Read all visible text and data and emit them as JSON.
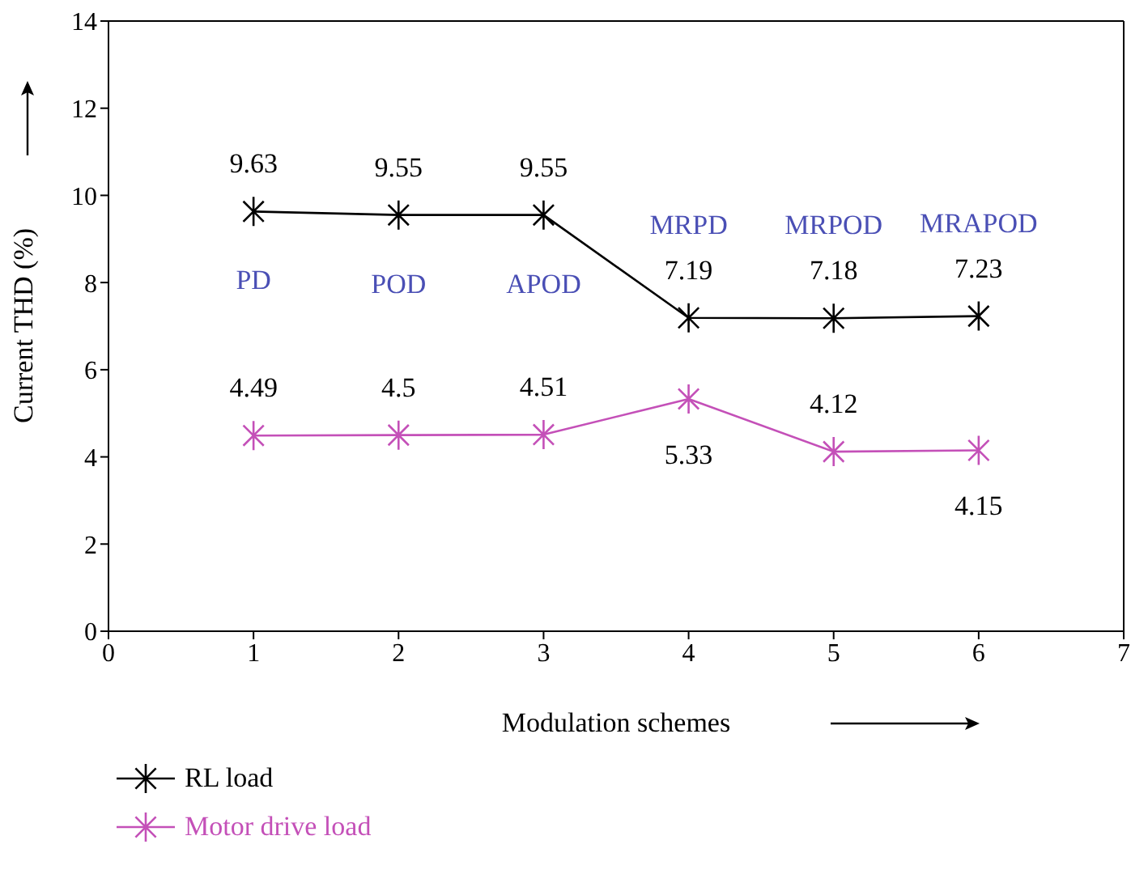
{
  "chart_data": {
    "type": "line",
    "xlabel": "Modulation schemes",
    "ylabel": "Current THD (%)",
    "x": [
      1,
      2,
      3,
      4,
      5,
      6
    ],
    "series": [
      {
        "name": "RL load",
        "color": "#000000",
        "values": [
          9.63,
          9.55,
          9.55,
          7.19,
          7.18,
          7.23
        ]
      },
      {
        "name": "Motor drive load",
        "color": "#c450b8",
        "values": [
          4.49,
          4.5,
          4.51,
          5.33,
          4.12,
          4.15
        ]
      }
    ],
    "xlim": [
      0,
      7
    ],
    "xticks": [
      0,
      1,
      2,
      3,
      4,
      5,
      6,
      7
    ],
    "ylim": [
      0,
      14
    ],
    "yticks": [
      0,
      2,
      4,
      6,
      8,
      10,
      12,
      14
    ],
    "annotations": [
      "PD",
      "POD",
      "APOD",
      "MRPD",
      "MRPOD",
      "MRAPOD"
    ],
    "data_labels": true,
    "legend": "bottom left",
    "marker": "cross",
    "line_style": "solid"
  }
}
